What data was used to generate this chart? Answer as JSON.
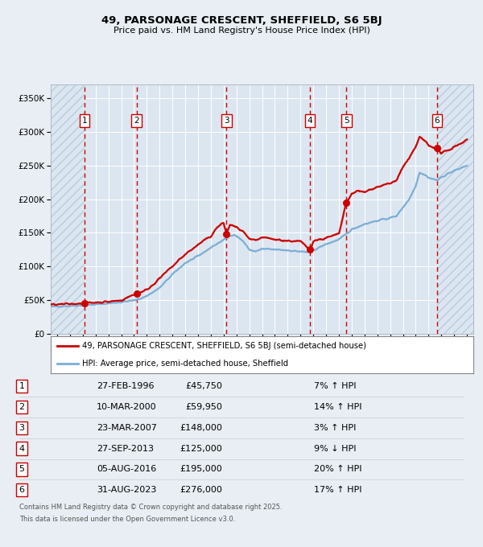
{
  "title1": "49, PARSONAGE CRESCENT, SHEFFIELD, S6 5BJ",
  "title2": "Price paid vs. HM Land Registry's House Price Index (HPI)",
  "ylabel_ticks": [
    "£0",
    "£50K",
    "£100K",
    "£150K",
    "£200K",
    "£250K",
    "£300K",
    "£350K"
  ],
  "ytick_values": [
    0,
    50000,
    100000,
    150000,
    200000,
    250000,
    300000,
    350000
  ],
  "ylim": [
    0,
    370000
  ],
  "xlim_start": 1993.5,
  "xlim_end": 2026.5,
  "transactions": [
    {
      "num": 1,
      "date": "27-FEB-1996",
      "year": 1996.15,
      "price": 45750,
      "pct": "7%",
      "dir": "↑"
    },
    {
      "num": 2,
      "date": "10-MAR-2000",
      "year": 2000.2,
      "price": 59950,
      "pct": "14%",
      "dir": "↑"
    },
    {
      "num": 3,
      "date": "23-MAR-2007",
      "year": 2007.22,
      "price": 148000,
      "pct": "3%",
      "dir": "↑"
    },
    {
      "num": 4,
      "date": "27-SEP-2013",
      "year": 2013.73,
      "price": 125000,
      "pct": "9%",
      "dir": "↓"
    },
    {
      "num": 5,
      "date": "05-AUG-2016",
      "year": 2016.59,
      "price": 195000,
      "pct": "20%",
      "dir": "↑"
    },
    {
      "num": 6,
      "date": "31-AUG-2023",
      "year": 2023.66,
      "price": 276000,
      "pct": "17%",
      "dir": "↑"
    }
  ],
  "legend_entries": [
    {
      "label": "49, PARSONAGE CRESCENT, SHEFFIELD, S6 5BJ (semi-detached house)",
      "color": "#cc0000",
      "lw": 2
    },
    {
      "label": "HPI: Average price, semi-detached house, Sheffield",
      "color": "#7aaed6",
      "lw": 2
    }
  ],
  "footer1": "Contains HM Land Registry data © Crown copyright and database right 2025.",
  "footer2": "This data is licensed under the Open Government Licence v3.0.",
  "bg_color": "#e8eef4",
  "plot_bg": "#dce6f0",
  "grid_color": "#ffffff",
  "vline_color": "#cc0000",
  "hpi_anchors": [
    [
      1993.5,
      40000
    ],
    [
      1994.5,
      41000
    ],
    [
      1996.15,
      42500
    ],
    [
      1997.0,
      43500
    ],
    [
      1998.0,
      45000
    ],
    [
      1999.0,
      47000
    ],
    [
      2000.2,
      50000
    ],
    [
      2001.0,
      56000
    ],
    [
      2002.0,
      68000
    ],
    [
      2003.0,
      88000
    ],
    [
      2004.0,
      105000
    ],
    [
      2005.0,
      115000
    ],
    [
      2006.0,
      128000
    ],
    [
      2007.22,
      142000
    ],
    [
      2007.8,
      148000
    ],
    [
      2008.5,
      138000
    ],
    [
      2009.0,
      125000
    ],
    [
      2009.5,
      122000
    ],
    [
      2010.0,
      126000
    ],
    [
      2011.0,
      125000
    ],
    [
      2012.0,
      124000
    ],
    [
      2013.0,
      122000
    ],
    [
      2013.73,
      121000
    ],
    [
      2014.0,
      124000
    ],
    [
      2015.0,
      133000
    ],
    [
      2016.0,
      140000
    ],
    [
      2016.59,
      148000
    ],
    [
      2017.0,
      155000
    ],
    [
      2018.0,
      163000
    ],
    [
      2019.0,
      168000
    ],
    [
      2020.0,
      172000
    ],
    [
      2020.5,
      175000
    ],
    [
      2021.0,
      188000
    ],
    [
      2021.5,
      200000
    ],
    [
      2022.0,
      220000
    ],
    [
      2022.3,
      240000
    ],
    [
      2022.8,
      235000
    ],
    [
      2023.0,
      232000
    ],
    [
      2023.66,
      228000
    ],
    [
      2024.0,
      232000
    ],
    [
      2024.5,
      238000
    ],
    [
      2025.0,
      242000
    ],
    [
      2025.5,
      246000
    ],
    [
      2026.0,
      250000
    ]
  ],
  "price_anchors": [
    [
      1993.5,
      43000
    ],
    [
      1994.5,
      43500
    ],
    [
      1996.15,
      45750
    ],
    [
      1997.0,
      46500
    ],
    [
      1998.0,
      47500
    ],
    [
      1999.0,
      49500
    ],
    [
      2000.2,
      59950
    ],
    [
      2001.0,
      65000
    ],
    [
      2002.0,
      82000
    ],
    [
      2003.0,
      100000
    ],
    [
      2004.0,
      118000
    ],
    [
      2005.0,
      132000
    ],
    [
      2006.0,
      145000
    ],
    [
      2006.5,
      158000
    ],
    [
      2007.0,
      165000
    ],
    [
      2007.22,
      148000
    ],
    [
      2007.5,
      162000
    ],
    [
      2008.0,
      158000
    ],
    [
      2008.5,
      152000
    ],
    [
      2009.0,
      140000
    ],
    [
      2009.5,
      138000
    ],
    [
      2010.0,
      143000
    ],
    [
      2011.0,
      140000
    ],
    [
      2012.0,
      138000
    ],
    [
      2013.0,
      137000
    ],
    [
      2013.73,
      125000
    ],
    [
      2014.0,
      138000
    ],
    [
      2015.0,
      142000
    ],
    [
      2016.0,
      148000
    ],
    [
      2016.59,
      195000
    ],
    [
      2017.0,
      208000
    ],
    [
      2017.5,
      212000
    ],
    [
      2018.0,
      210000
    ],
    [
      2018.5,
      215000
    ],
    [
      2019.0,
      218000
    ],
    [
      2019.5,
      221000
    ],
    [
      2020.0,
      223000
    ],
    [
      2020.5,
      228000
    ],
    [
      2021.0,
      248000
    ],
    [
      2021.5,
      260000
    ],
    [
      2022.0,
      278000
    ],
    [
      2022.3,
      292000
    ],
    [
      2022.8,
      285000
    ],
    [
      2023.0,
      280000
    ],
    [
      2023.66,
      276000
    ],
    [
      2024.0,
      268000
    ],
    [
      2024.5,
      272000
    ],
    [
      2025.0,
      278000
    ],
    [
      2025.5,
      283000
    ],
    [
      2026.0,
      288000
    ]
  ]
}
